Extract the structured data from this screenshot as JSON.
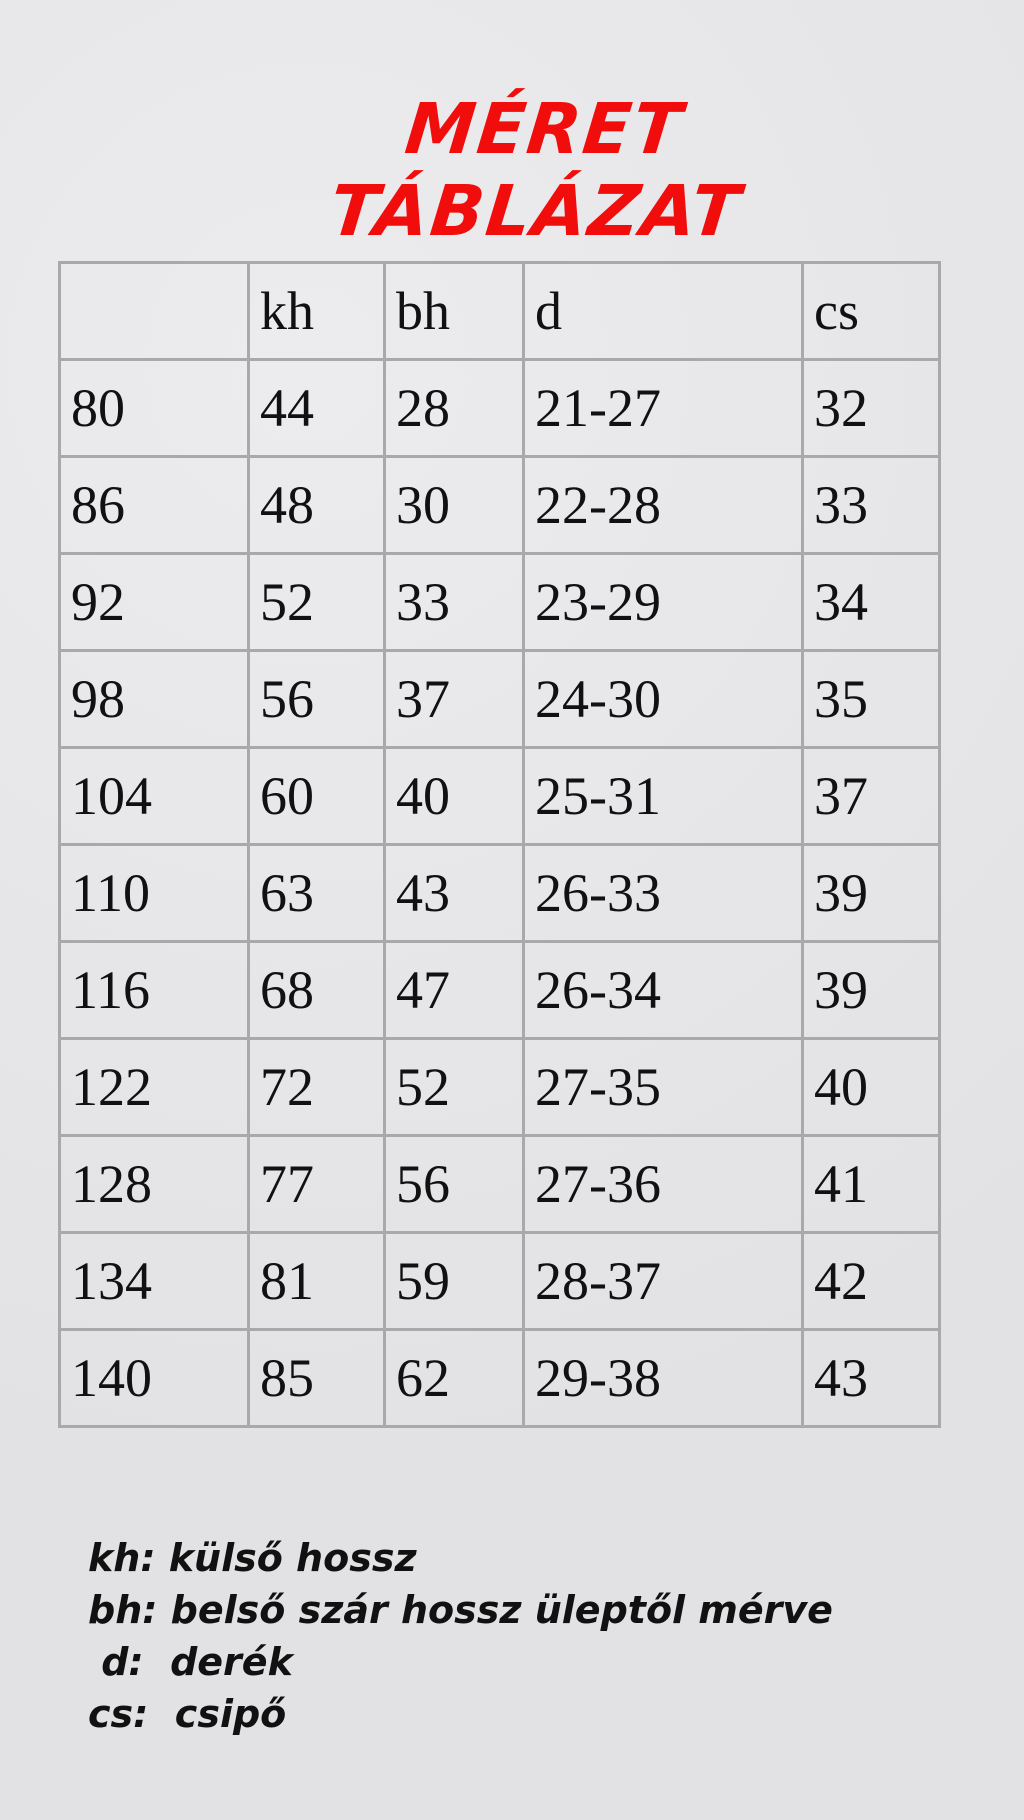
{
  "title": "MÉRET TÁBLÁZAT",
  "table": {
    "headers": [
      "",
      "kh",
      "bh",
      "d",
      "cs"
    ],
    "rows": [
      [
        "80",
        "44",
        "28",
        "21-27",
        "32"
      ],
      [
        "86",
        "48",
        "30",
        "22-28",
        "33"
      ],
      [
        "92",
        "52",
        "33",
        "23-29",
        "34"
      ],
      [
        "98",
        "56",
        "37",
        "24-30",
        "35"
      ],
      [
        "104",
        "60",
        "40",
        "25-31",
        "37"
      ],
      [
        "110",
        "63",
        "43",
        "26-33",
        "39"
      ],
      [
        "116",
        "68",
        "47",
        "26-34",
        "39"
      ],
      [
        "122",
        "72",
        "52",
        "27-35",
        "40"
      ],
      [
        "128",
        "77",
        "56",
        "27-36",
        "41"
      ],
      [
        "134",
        "81",
        "59",
        "28-37",
        "42"
      ],
      [
        "140",
        "85",
        "62",
        "29-38",
        "43"
      ]
    ]
  },
  "legend": [
    "kh: külső hossz",
    "bh: belső szár hossz üleptől mérve",
    " d:  derék",
    "cs:  csipő"
  ],
  "colors": {
    "title": "#f20d0d",
    "grid": "#a9a9a9"
  }
}
